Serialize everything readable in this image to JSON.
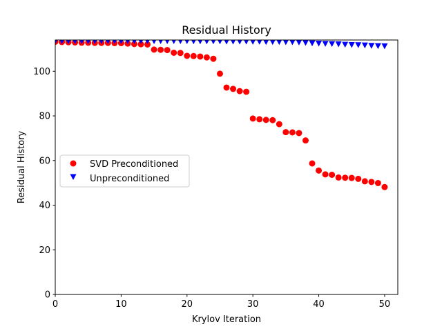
{
  "chart_data": {
    "type": "scatter",
    "title": "Residual History",
    "xlabel": "Krylov Iteration",
    "ylabel": "Residual History",
    "xlim": [
      0,
      52
    ],
    "ylim": [
      0,
      114
    ],
    "xticks": [
      0,
      10,
      20,
      30,
      40,
      50
    ],
    "yticks": [
      0,
      20,
      40,
      60,
      80,
      100
    ],
    "grid": false,
    "legend_position": "center-left",
    "series": [
      {
        "name": "SVD Preconditioned",
        "marker": "circle",
        "color": "#ff0000",
        "x": [
          0,
          1,
          2,
          3,
          4,
          5,
          6,
          7,
          8,
          9,
          10,
          11,
          12,
          13,
          14,
          15,
          16,
          17,
          18,
          19,
          20,
          21,
          22,
          23,
          24,
          25,
          26,
          27,
          28,
          29,
          30,
          31,
          32,
          33,
          34,
          35,
          36,
          37,
          38,
          39,
          40,
          41,
          42,
          43,
          44,
          45,
          46,
          47,
          48,
          49,
          50
        ],
        "y": [
          113.2,
          113.1,
          113.0,
          112.9,
          112.8,
          112.8,
          112.7,
          112.7,
          112.7,
          112.6,
          112.6,
          112.4,
          112.2,
          112.1,
          112.0,
          109.7,
          109.6,
          109.5,
          108.3,
          108.2,
          106.9,
          106.8,
          106.6,
          106.2,
          105.6,
          98.9,
          92.7,
          92.1,
          91.1,
          90.8,
          78.8,
          78.5,
          78.2,
          78.1,
          76.3,
          72.7,
          72.6,
          72.3,
          69.0,
          58.7,
          55.5,
          53.8,
          53.6,
          52.4,
          52.3,
          52.2,
          51.8,
          50.7,
          50.4,
          49.9,
          48.1
        ]
      },
      {
        "name": "Unpreconditioned",
        "marker": "triangle-down",
        "color": "#0000ff",
        "x": [
          0,
          1,
          2,
          3,
          4,
          5,
          6,
          7,
          8,
          9,
          10,
          11,
          12,
          13,
          14,
          15,
          16,
          17,
          18,
          19,
          20,
          21,
          22,
          23,
          24,
          25,
          26,
          27,
          28,
          29,
          30,
          31,
          32,
          33,
          34,
          35,
          36,
          37,
          38,
          39,
          40,
          41,
          42,
          43,
          44,
          45,
          46,
          47,
          48,
          49,
          50
        ],
        "y": [
          113.4,
          113.4,
          113.4,
          113.4,
          113.4,
          113.4,
          113.4,
          113.4,
          113.4,
          113.4,
          113.4,
          113.4,
          113.4,
          113.4,
          113.4,
          113.4,
          113.4,
          113.4,
          113.4,
          113.4,
          113.4,
          113.3,
          113.3,
          113.3,
          113.3,
          113.3,
          113.2,
          113.2,
          113.2,
          113.2,
          113.1,
          113.1,
          113.0,
          113.0,
          113.0,
          112.9,
          112.9,
          112.8,
          112.6,
          112.4,
          112.3,
          112.2,
          112.1,
          112.0,
          111.8,
          111.7,
          111.6,
          111.5,
          111.3,
          111.2,
          111.1
        ]
      }
    ]
  }
}
